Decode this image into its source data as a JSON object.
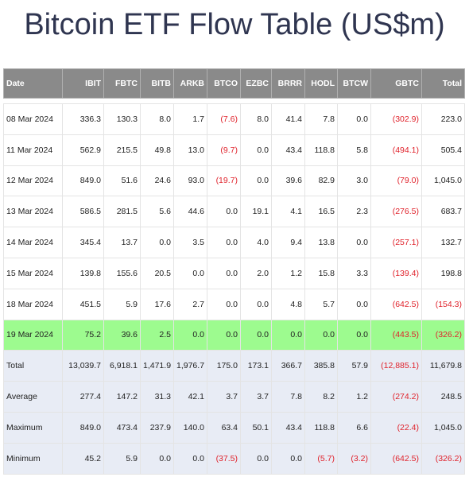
{
  "title": "Bitcoin ETF Flow Table (US$m)",
  "columns": [
    "Date",
    "IBIT",
    "FBTC",
    "BITB",
    "ARKB",
    "BTCO",
    "EZBC",
    "BRRR",
    "HODL",
    "BTCW",
    "GBTC",
    "Total"
  ],
  "rows": [
    {
      "cells": [
        "08 Mar 2024",
        "336.3",
        "130.3",
        "8.0",
        "1.7",
        "(7.6)",
        "8.0",
        "41.4",
        "7.8",
        "0.0",
        "(302.9)",
        "223.0"
      ],
      "highlight": false
    },
    {
      "cells": [
        "11 Mar 2024",
        "562.9",
        "215.5",
        "49.8",
        "13.0",
        "(9.7)",
        "0.0",
        "43.4",
        "118.8",
        "5.8",
        "(494.1)",
        "505.4"
      ],
      "highlight": false
    },
    {
      "cells": [
        "12 Mar 2024",
        "849.0",
        "51.6",
        "24.6",
        "93.0",
        "(19.7)",
        "0.0",
        "39.6",
        "82.9",
        "3.0",
        "(79.0)",
        "1,045.0"
      ],
      "highlight": false
    },
    {
      "cells": [
        "13 Mar 2024",
        "586.5",
        "281.5",
        "5.6",
        "44.6",
        "0.0",
        "19.1",
        "4.1",
        "16.5",
        "2.3",
        "(276.5)",
        "683.7"
      ],
      "highlight": false
    },
    {
      "cells": [
        "14 Mar 2024",
        "345.4",
        "13.7",
        "0.0",
        "3.5",
        "0.0",
        "4.0",
        "9.4",
        "13.8",
        "0.0",
        "(257.1)",
        "132.7"
      ],
      "highlight": false
    },
    {
      "cells": [
        "15 Mar 2024",
        "139.8",
        "155.6",
        "20.5",
        "0.0",
        "0.0",
        "2.0",
        "1.2",
        "15.8",
        "3.3",
        "(139.4)",
        "198.8"
      ],
      "highlight": false
    },
    {
      "cells": [
        "18 Mar 2024",
        "451.5",
        "5.9",
        "17.6",
        "2.7",
        "0.0",
        "0.0",
        "4.8",
        "5.7",
        "0.0",
        "(642.5)",
        "(154.3)"
      ],
      "highlight": false
    },
    {
      "cells": [
        "19 Mar 2024",
        "75.2",
        "39.6",
        "2.5",
        "0.0",
        "0.0",
        "0.0",
        "0.0",
        "0.0",
        "0.0",
        "(443.5)",
        "(326.2)"
      ],
      "highlight": true
    }
  ],
  "stats": [
    {
      "cells": [
        "Total",
        "13,039.7",
        "6,918.1",
        "1,471.9",
        "1,976.7",
        "175.0",
        "173.1",
        "366.7",
        "385.8",
        "57.9",
        "(12,885.1)",
        "11,679.8"
      ]
    },
    {
      "cells": [
        "Average",
        "277.4",
        "147.2",
        "31.3",
        "42.1",
        "3.7",
        "3.7",
        "7.8",
        "8.2",
        "1.2",
        "(274.2)",
        "248.5"
      ]
    },
    {
      "cells": [
        "Maximum",
        "849.0",
        "473.4",
        "237.9",
        "140.0",
        "63.4",
        "50.1",
        "43.4",
        "118.8",
        "6.6",
        "(22.4)",
        "1,045.0"
      ]
    },
    {
      "cells": [
        "Minimum",
        "45.2",
        "5.9",
        "0.0",
        "0.0",
        "(37.5)",
        "0.0",
        "0.0",
        "(5.7)",
        "(3.2)",
        "(642.5)",
        "(326.2)"
      ]
    }
  ],
  "colors": {
    "header_bg": "#8a8a8a",
    "highlight_bg": "#9dfb8f",
    "stat_bg": "#e8ecf5",
    "negative": "#e0222b",
    "title": "#2f3550"
  }
}
